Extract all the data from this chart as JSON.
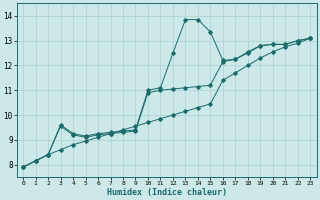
{
  "xlabel": "Humidex (Indice chaleur)",
  "ylabel": "",
  "bg_color": "#cde8e8",
  "line_color": "#1a6b6b",
  "grid_color": "#afd4d4",
  "xlim": [
    -0.5,
    23.5
  ],
  "ylim": [
    7.5,
    14.5
  ],
  "xticks": [
    0,
    1,
    2,
    3,
    4,
    5,
    6,
    7,
    8,
    9,
    10,
    11,
    12,
    13,
    14,
    15,
    16,
    17,
    18,
    19,
    20,
    21,
    22,
    23
  ],
  "yticks": [
    8,
    9,
    10,
    11,
    12,
    13,
    14
  ],
  "line1_x": [
    0,
    1,
    2,
    3,
    4,
    5,
    6,
    7,
    8,
    9,
    10,
    11,
    12,
    13,
    14,
    15,
    16,
    17,
    18,
    19,
    20,
    21,
    22,
    23
  ],
  "line1_y": [
    7.9,
    8.15,
    8.4,
    8.6,
    8.8,
    8.95,
    9.1,
    9.25,
    9.4,
    9.55,
    9.7,
    9.85,
    10.0,
    10.15,
    10.3,
    10.45,
    11.4,
    11.7,
    12.0,
    12.3,
    12.55,
    12.75,
    12.9,
    13.1
  ],
  "line2_x": [
    0,
    1,
    2,
    3,
    4,
    5,
    6,
    7,
    8,
    9,
    10,
    11,
    12,
    13,
    14,
    15,
    16,
    17,
    18,
    19,
    20,
    21,
    22,
    23
  ],
  "line2_y": [
    7.9,
    8.15,
    8.4,
    9.55,
    9.2,
    9.1,
    9.2,
    9.25,
    9.3,
    9.35,
    10.9,
    11.0,
    11.05,
    11.1,
    11.15,
    11.2,
    12.15,
    12.25,
    12.5,
    12.8,
    12.85,
    12.85,
    13.0,
    13.1
  ],
  "line3_x": [
    0,
    1,
    2,
    3,
    4,
    5,
    6,
    7,
    8,
    9,
    10,
    11,
    12,
    13,
    14,
    15,
    16,
    17,
    18,
    19,
    20,
    21,
    22,
    23
  ],
  "line3_y": [
    7.9,
    8.15,
    8.4,
    9.6,
    9.25,
    9.15,
    9.25,
    9.3,
    9.35,
    9.4,
    11.0,
    11.1,
    12.5,
    13.85,
    13.85,
    13.35,
    12.2,
    12.25,
    12.55,
    12.8,
    12.85,
    12.85,
    13.0,
    13.1
  ]
}
